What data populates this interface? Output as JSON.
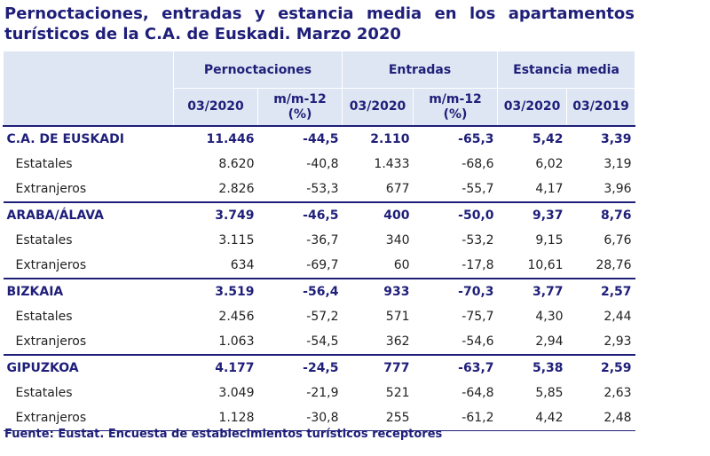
{
  "title": "Pernoctaciones, entradas y estancia media en los apartamentos turísticos de la C.A. de Euskadi. Marzo 2020",
  "table": {
    "groups": [
      "Pernoctaciones",
      "Entradas",
      "Estancia media"
    ],
    "subheaders": [
      "03/2020",
      "m/m-12 (%)",
      "03/2020",
      "m/m-12 (%)",
      "03/2020",
      "03/2019"
    ],
    "regions": [
      {
        "name": "C.A. DE EUSKADI",
        "values": [
          "11.446",
          "-44,5",
          "2.110",
          "-65,3",
          "5,42",
          "3,39"
        ],
        "rows": [
          {
            "label": "Estatales",
            "values": [
              "8.620",
              "-40,8",
              "1.433",
              "-68,6",
              "6,02",
              "3,19"
            ]
          },
          {
            "label": "Extranjeros",
            "values": [
              "2.826",
              "-53,3",
              "677",
              "-55,7",
              "4,17",
              "3,96"
            ]
          }
        ]
      },
      {
        "name": "ARABA/ÁLAVA",
        "values": [
          "3.749",
          "-46,5",
          "400",
          "-50,0",
          "9,37",
          "8,76"
        ],
        "rows": [
          {
            "label": "Estatales",
            "values": [
              "3.115",
              "-36,7",
              "340",
              "-53,2",
              "9,15",
              "6,76"
            ]
          },
          {
            "label": "Extranjeros",
            "values": [
              "634",
              "-69,7",
              "60",
              "-17,8",
              "10,61",
              "28,76"
            ]
          }
        ]
      },
      {
        "name": "BIZKAIA",
        "values": [
          "3.519",
          "-56,4",
          "933",
          "-70,3",
          "3,77",
          "2,57"
        ],
        "rows": [
          {
            "label": "Estatales",
            "values": [
              "2.456",
              "-57,2",
              "571",
              "-75,7",
              "4,30",
              "2,44"
            ]
          },
          {
            "label": "Extranjeros",
            "values": [
              "1.063",
              "-54,5",
              "362",
              "-54,6",
              "2,94",
              "2,93"
            ]
          }
        ]
      },
      {
        "name": "GIPUZKOA",
        "values": [
          "4.177",
          "-24,5",
          "777",
          "-63,7",
          "5,38",
          "2,59"
        ],
        "rows": [
          {
            "label": "Estatales",
            "values": [
              "3.049",
              "-21,9",
              "521",
              "-64,8",
              "5,85",
              "2,63"
            ]
          },
          {
            "label": "Extranjeros",
            "values": [
              "1.128",
              "-30,8",
              "255",
              "-61,2",
              "4,42",
              "2,48"
            ]
          }
        ]
      }
    ]
  },
  "source": "Fuente: Eustat. Encuesta de establecimientos turísticos receptores"
}
